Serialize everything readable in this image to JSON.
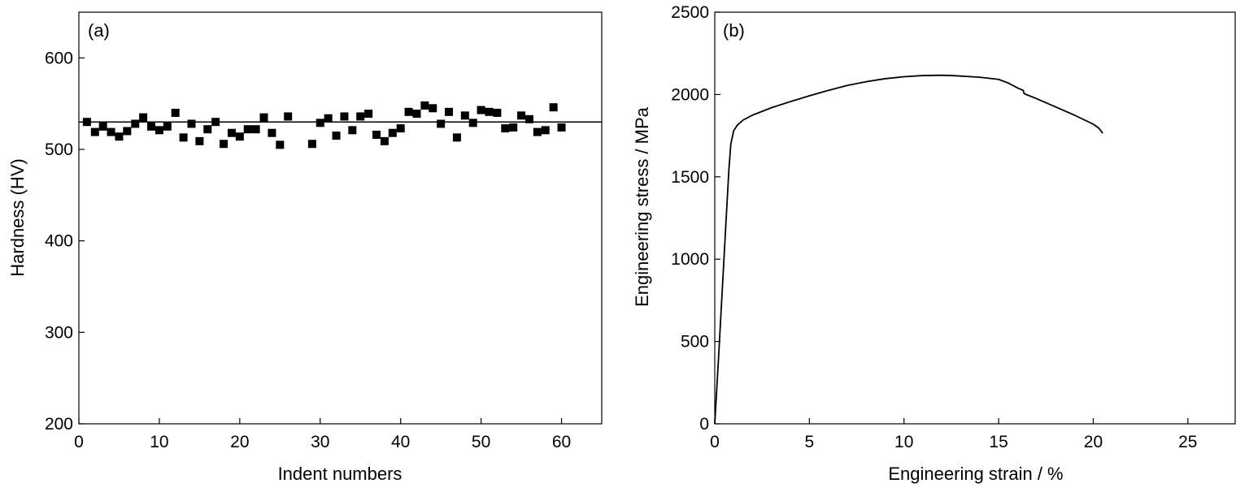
{
  "chart_data": [
    {
      "type": "scatter",
      "panel_label": "(a)",
      "title": "",
      "xlabel": "Indent numbers",
      "ylabel": "Hardness (HV)",
      "xlim": [
        0,
        65
      ],
      "ylim": [
        200,
        650
      ],
      "xticks": [
        "0",
        "10",
        "20",
        "30",
        "40",
        "50",
        "60"
      ],
      "yticks": [
        "200",
        "300",
        "400",
        "500",
        "600"
      ],
      "marker": "square",
      "reference_line": 530,
      "points": [
        [
          1,
          530
        ],
        [
          2,
          519
        ],
        [
          3,
          525
        ],
        [
          4,
          519
        ],
        [
          5,
          514
        ],
        [
          6,
          520
        ],
        [
          7,
          528
        ],
        [
          8,
          535
        ],
        [
          9,
          525
        ],
        [
          10,
          521
        ],
        [
          11,
          525
        ],
        [
          12,
          540
        ],
        [
          13,
          513
        ],
        [
          14,
          528
        ],
        [
          15,
          509
        ],
        [
          16,
          522
        ],
        [
          17,
          530
        ],
        [
          18,
          506
        ],
        [
          19,
          518
        ],
        [
          20,
          514
        ],
        [
          21,
          522
        ],
        [
          22,
          522
        ],
        [
          23,
          535
        ],
        [
          24,
          518
        ],
        [
          25,
          505
        ],
        [
          26,
          536
        ],
        [
          29,
          506
        ],
        [
          30,
          529
        ],
        [
          31,
          534
        ],
        [
          32,
          515
        ],
        [
          33,
          536
        ],
        [
          34,
          521
        ],
        [
          35,
          536
        ],
        [
          36,
          539
        ],
        [
          37,
          516
        ],
        [
          38,
          509
        ],
        [
          39,
          518
        ],
        [
          40,
          523
        ],
        [
          41,
          541
        ],
        [
          42,
          539
        ],
        [
          43,
          548
        ],
        [
          44,
          545
        ],
        [
          45,
          528
        ],
        [
          46,
          541
        ],
        [
          47,
          513
        ],
        [
          48,
          537
        ],
        [
          49,
          529
        ],
        [
          50,
          543
        ],
        [
          51,
          541
        ],
        [
          52,
          540
        ],
        [
          53,
          523
        ],
        [
          54,
          524
        ],
        [
          55,
          537
        ],
        [
          56,
          533
        ],
        [
          57,
          519
        ],
        [
          58,
          521
        ],
        [
          59,
          546
        ],
        [
          60,
          524
        ]
      ]
    },
    {
      "type": "line",
      "panel_label": "(b)",
      "title": "",
      "xlabel": "Engineering strain / %",
      "ylabel": "Engineering stress / MPa",
      "xlim": [
        0,
        27.5
      ],
      "ylim": [
        0,
        2500
      ],
      "xticks": [
        "0",
        "5",
        "10",
        "15",
        "20",
        "25"
      ],
      "yticks": [
        "0",
        "500",
        "1000",
        "1500",
        "2000",
        "2500"
      ],
      "x": [
        0,
        0.2,
        0.4,
        0.6,
        0.75,
        0.85,
        1.0,
        1.2,
        1.5,
        2,
        3,
        4,
        5,
        6,
        7,
        8,
        9,
        10,
        11,
        12,
        12.5,
        13,
        14,
        15,
        15.5,
        16,
        16.3,
        16.35,
        17,
        18,
        19,
        20,
        20.3,
        20.5
      ],
      "y": [
        0,
        400,
        820,
        1240,
        1550,
        1700,
        1780,
        1815,
        1845,
        1875,
        1920,
        1957,
        1992,
        2025,
        2055,
        2078,
        2096,
        2108,
        2115,
        2117,
        2115,
        2112,
        2105,
        2092,
        2070,
        2040,
        2025,
        2005,
        1975,
        1925,
        1875,
        1820,
        1795,
        1765
      ]
    }
  ]
}
